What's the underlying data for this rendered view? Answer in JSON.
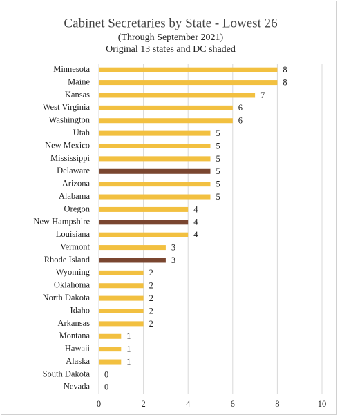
{
  "chart_data": {
    "type": "hbar",
    "title": "Cabinet Secretaries by State - Lowest 26",
    "subtitle": "(Through September 2021)",
    "note": "Original 13 states and DC shaded",
    "categories": [
      "Minnesota",
      "Maine",
      "Kansas",
      "West Virginia",
      "Washington",
      "Utah",
      "New Mexico",
      "Mississippi",
      "Delaware",
      "Arizona",
      "Alabama",
      "Oregon",
      "New Hampshire",
      "Louisiana",
      "Vermont",
      "Rhode Island",
      "Wyoming",
      "Oklahoma",
      "North Dakota",
      "Idaho",
      "Arkansas",
      "Montana",
      "Hawaii",
      "Alaska",
      "South Dakota",
      "Nevada"
    ],
    "values": [
      8,
      8,
      7,
      6,
      6,
      5,
      5,
      5,
      5,
      5,
      5,
      4,
      4,
      4,
      3,
      3,
      2,
      2,
      2,
      2,
      2,
      1,
      1,
      1,
      0,
      0
    ],
    "colors": [
      "#f2c040",
      "#f2c040",
      "#f2c040",
      "#f2c040",
      "#f2c040",
      "#f2c040",
      "#f2c040",
      "#f2c040",
      "#7a4630",
      "#f2c040",
      "#f2c040",
      "#f2c040",
      "#7a4630",
      "#f2c040",
      "#f2c040",
      "#7a4630",
      "#f2c040",
      "#f2c040",
      "#f2c040",
      "#f2c040",
      "#f2c040",
      "#f2c040",
      "#f2c040",
      "#f2c040",
      "#f2c040",
      "#f2c040"
    ],
    "xlim": [
      0,
      10
    ],
    "xticks": [
      0,
      2,
      4,
      6,
      8,
      10
    ],
    "grid": true
  }
}
